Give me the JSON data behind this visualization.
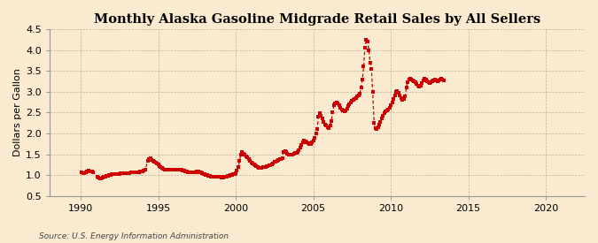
{
  "title": "Monthly Alaska Gasoline Midgrade Retail Sales by All Sellers",
  "ylabel": "Dollars per Gallon",
  "source": "Source: U.S. Energy Information Administration",
  "background_color": "#faebd0",
  "line_color": "#cc0000",
  "xlim": [
    1988.0,
    2022.5
  ],
  "ylim": [
    0.5,
    4.5
  ],
  "xticks": [
    1990,
    1995,
    2000,
    2005,
    2010,
    2015,
    2020
  ],
  "yticks": [
    0.5,
    1.0,
    1.5,
    2.0,
    2.5,
    3.0,
    3.5,
    4.0,
    4.5
  ],
  "data_points": [
    [
      1990.08,
      1.06
    ],
    [
      1990.17,
      1.05
    ],
    [
      1990.25,
      1.05
    ],
    [
      1990.33,
      1.06
    ],
    [
      1990.42,
      1.08
    ],
    [
      1990.5,
      1.1
    ],
    [
      1990.58,
      1.09
    ],
    [
      1990.67,
      1.09
    ],
    [
      1990.75,
      1.08
    ],
    [
      1990.83,
      1.06
    ],
    [
      1991.08,
      0.97
    ],
    [
      1991.17,
      0.94
    ],
    [
      1991.25,
      0.92
    ],
    [
      1991.33,
      0.91
    ],
    [
      1991.42,
      0.93
    ],
    [
      1991.5,
      0.95
    ],
    [
      1991.58,
      0.97
    ],
    [
      1991.67,
      0.98
    ],
    [
      1991.75,
      0.99
    ],
    [
      1991.83,
      1.0
    ],
    [
      1991.92,
      1.01
    ],
    [
      1992.0,
      1.02
    ],
    [
      1992.08,
      1.02
    ],
    [
      1992.17,
      1.02
    ],
    [
      1992.25,
      1.02
    ],
    [
      1992.33,
      1.03
    ],
    [
      1992.42,
      1.03
    ],
    [
      1992.5,
      1.03
    ],
    [
      1992.58,
      1.04
    ],
    [
      1992.67,
      1.04
    ],
    [
      1992.75,
      1.04
    ],
    [
      1992.83,
      1.05
    ],
    [
      1992.92,
      1.05
    ],
    [
      1993.0,
      1.05
    ],
    [
      1993.08,
      1.05
    ],
    [
      1993.17,
      1.05
    ],
    [
      1993.25,
      1.06
    ],
    [
      1993.33,
      1.06
    ],
    [
      1993.42,
      1.06
    ],
    [
      1993.5,
      1.06
    ],
    [
      1993.58,
      1.07
    ],
    [
      1993.67,
      1.07
    ],
    [
      1993.75,
      1.07
    ],
    [
      1993.83,
      1.08
    ],
    [
      1993.92,
      1.08
    ],
    [
      1994.0,
      1.08
    ],
    [
      1994.08,
      1.1
    ],
    [
      1994.17,
      1.12
    ],
    [
      1994.33,
      1.35
    ],
    [
      1994.42,
      1.38
    ],
    [
      1994.5,
      1.4
    ],
    [
      1994.58,
      1.37
    ],
    [
      1994.67,
      1.35
    ],
    [
      1994.75,
      1.33
    ],
    [
      1994.83,
      1.3
    ],
    [
      1994.92,
      1.28
    ],
    [
      1995.0,
      1.25
    ],
    [
      1995.08,
      1.22
    ],
    [
      1995.17,
      1.2
    ],
    [
      1995.25,
      1.18
    ],
    [
      1995.33,
      1.16
    ],
    [
      1995.42,
      1.14
    ],
    [
      1995.5,
      1.12
    ],
    [
      1995.58,
      1.12
    ],
    [
      1995.67,
      1.12
    ],
    [
      1995.75,
      1.12
    ],
    [
      1995.83,
      1.12
    ],
    [
      1995.92,
      1.12
    ],
    [
      1996.0,
      1.12
    ],
    [
      1996.08,
      1.13
    ],
    [
      1996.17,
      1.14
    ],
    [
      1996.25,
      1.14
    ],
    [
      1996.33,
      1.13
    ],
    [
      1996.42,
      1.13
    ],
    [
      1996.5,
      1.12
    ],
    [
      1996.58,
      1.11
    ],
    [
      1996.67,
      1.1
    ],
    [
      1996.75,
      1.09
    ],
    [
      1996.83,
      1.08
    ],
    [
      1996.92,
      1.07
    ],
    [
      1997.0,
      1.07
    ],
    [
      1997.08,
      1.07
    ],
    [
      1997.17,
      1.06
    ],
    [
      1997.25,
      1.06
    ],
    [
      1997.33,
      1.06
    ],
    [
      1997.42,
      1.07
    ],
    [
      1997.5,
      1.08
    ],
    [
      1997.58,
      1.08
    ],
    [
      1997.67,
      1.07
    ],
    [
      1997.75,
      1.06
    ],
    [
      1997.83,
      1.04
    ],
    [
      1997.92,
      1.03
    ],
    [
      1998.0,
      1.02
    ],
    [
      1998.08,
      1.01
    ],
    [
      1998.17,
      1.0
    ],
    [
      1998.25,
      0.99
    ],
    [
      1998.33,
      0.98
    ],
    [
      1998.42,
      0.97
    ],
    [
      1998.5,
      0.97
    ],
    [
      1998.58,
      0.97
    ],
    [
      1998.67,
      0.97
    ],
    [
      1998.75,
      0.97
    ],
    [
      1998.83,
      0.97
    ],
    [
      1998.92,
      0.96
    ],
    [
      1999.0,
      0.95
    ],
    [
      1999.08,
      0.94
    ],
    [
      1999.17,
      0.94
    ],
    [
      1999.25,
      0.95
    ],
    [
      1999.33,
      0.96
    ],
    [
      1999.42,
      0.97
    ],
    [
      1999.5,
      0.98
    ],
    [
      1999.58,
      0.99
    ],
    [
      1999.67,
      1.0
    ],
    [
      1999.75,
      1.01
    ],
    [
      1999.83,
      1.02
    ],
    [
      1999.92,
      1.03
    ],
    [
      2000.0,
      1.05
    ],
    [
      2000.08,
      1.1
    ],
    [
      2000.17,
      1.2
    ],
    [
      2000.25,
      1.35
    ],
    [
      2000.33,
      1.5
    ],
    [
      2000.42,
      1.55
    ],
    [
      2000.5,
      1.52
    ],
    [
      2000.58,
      1.48
    ],
    [
      2000.67,
      1.45
    ],
    [
      2000.75,
      1.42
    ],
    [
      2000.83,
      1.38
    ],
    [
      2000.92,
      1.35
    ],
    [
      2001.0,
      1.3
    ],
    [
      2001.08,
      1.28
    ],
    [
      2001.17,
      1.25
    ],
    [
      2001.25,
      1.23
    ],
    [
      2001.33,
      1.22
    ],
    [
      2001.42,
      1.2
    ],
    [
      2001.5,
      1.18
    ],
    [
      2001.58,
      1.17
    ],
    [
      2001.67,
      1.18
    ],
    [
      2001.75,
      1.19
    ],
    [
      2001.83,
      1.2
    ],
    [
      2001.92,
      1.2
    ],
    [
      2002.0,
      1.21
    ],
    [
      2002.08,
      1.22
    ],
    [
      2002.17,
      1.23
    ],
    [
      2002.25,
      1.24
    ],
    [
      2002.33,
      1.25
    ],
    [
      2002.42,
      1.28
    ],
    [
      2002.5,
      1.31
    ],
    [
      2002.58,
      1.33
    ],
    [
      2002.67,
      1.35
    ],
    [
      2002.75,
      1.37
    ],
    [
      2002.83,
      1.38
    ],
    [
      2002.92,
      1.38
    ],
    [
      2003.0,
      1.4
    ],
    [
      2003.08,
      1.55
    ],
    [
      2003.17,
      1.58
    ],
    [
      2003.25,
      1.55
    ],
    [
      2003.33,
      1.52
    ],
    [
      2003.42,
      1.5
    ],
    [
      2003.5,
      1.48
    ],
    [
      2003.58,
      1.48
    ],
    [
      2003.67,
      1.5
    ],
    [
      2003.75,
      1.52
    ],
    [
      2003.83,
      1.53
    ],
    [
      2003.92,
      1.54
    ],
    [
      2004.0,
      1.55
    ],
    [
      2004.08,
      1.6
    ],
    [
      2004.17,
      1.65
    ],
    [
      2004.25,
      1.72
    ],
    [
      2004.33,
      1.78
    ],
    [
      2004.42,
      1.82
    ],
    [
      2004.5,
      1.8
    ],
    [
      2004.58,
      1.78
    ],
    [
      2004.67,
      1.76
    ],
    [
      2004.75,
      1.74
    ],
    [
      2004.83,
      1.75
    ],
    [
      2004.92,
      1.78
    ],
    [
      2005.0,
      1.82
    ],
    [
      2005.08,
      1.9
    ],
    [
      2005.17,
      2.0
    ],
    [
      2005.25,
      2.1
    ],
    [
      2005.33,
      2.4
    ],
    [
      2005.42,
      2.48
    ],
    [
      2005.5,
      2.42
    ],
    [
      2005.58,
      2.35
    ],
    [
      2005.67,
      2.28
    ],
    [
      2005.75,
      2.22
    ],
    [
      2005.83,
      2.18
    ],
    [
      2005.92,
      2.15
    ],
    [
      2006.0,
      2.12
    ],
    [
      2006.08,
      2.18
    ],
    [
      2006.17,
      2.3
    ],
    [
      2006.25,
      2.5
    ],
    [
      2006.33,
      2.68
    ],
    [
      2006.42,
      2.72
    ],
    [
      2006.5,
      2.75
    ],
    [
      2006.58,
      2.72
    ],
    [
      2006.67,
      2.68
    ],
    [
      2006.75,
      2.62
    ],
    [
      2006.83,
      2.58
    ],
    [
      2006.92,
      2.55
    ],
    [
      2007.0,
      2.52
    ],
    [
      2007.08,
      2.55
    ],
    [
      2007.17,
      2.6
    ],
    [
      2007.25,
      2.65
    ],
    [
      2007.33,
      2.7
    ],
    [
      2007.42,
      2.75
    ],
    [
      2007.5,
      2.78
    ],
    [
      2007.58,
      2.8
    ],
    [
      2007.67,
      2.82
    ],
    [
      2007.75,
      2.85
    ],
    [
      2007.83,
      2.88
    ],
    [
      2007.92,
      2.92
    ],
    [
      2008.0,
      2.96
    ],
    [
      2008.08,
      3.1
    ],
    [
      2008.17,
      3.3
    ],
    [
      2008.25,
      3.6
    ],
    [
      2008.33,
      4.05
    ],
    [
      2008.42,
      4.25
    ],
    [
      2008.5,
      4.2
    ],
    [
      2008.58,
      4.0
    ],
    [
      2008.67,
      3.7
    ],
    [
      2008.75,
      3.55
    ],
    [
      2008.83,
      3.0
    ],
    [
      2008.92,
      2.25
    ],
    [
      2009.0,
      2.12
    ],
    [
      2009.08,
      2.1
    ],
    [
      2009.17,
      2.15
    ],
    [
      2009.25,
      2.2
    ],
    [
      2009.33,
      2.28
    ],
    [
      2009.42,
      2.35
    ],
    [
      2009.5,
      2.42
    ],
    [
      2009.58,
      2.48
    ],
    [
      2009.67,
      2.52
    ],
    [
      2009.75,
      2.55
    ],
    [
      2009.83,
      2.58
    ],
    [
      2009.92,
      2.62
    ],
    [
      2010.0,
      2.68
    ],
    [
      2010.08,
      2.75
    ],
    [
      2010.17,
      2.82
    ],
    [
      2010.25,
      2.9
    ],
    [
      2010.33,
      3.0
    ],
    [
      2010.42,
      3.02
    ],
    [
      2010.5,
      2.98
    ],
    [
      2010.58,
      2.9
    ],
    [
      2010.67,
      2.85
    ],
    [
      2010.75,
      2.8
    ],
    [
      2010.83,
      2.82
    ],
    [
      2010.92,
      2.88
    ],
    [
      2011.0,
      3.1
    ],
    [
      2011.08,
      3.22
    ],
    [
      2011.17,
      3.3
    ],
    [
      2011.25,
      3.32
    ],
    [
      2011.33,
      3.3
    ],
    [
      2011.42,
      3.28
    ],
    [
      2011.5,
      3.25
    ],
    [
      2011.58,
      3.22
    ],
    [
      2011.67,
      3.18
    ],
    [
      2011.75,
      3.15
    ],
    [
      2011.83,
      3.12
    ],
    [
      2011.92,
      3.15
    ],
    [
      2012.0,
      3.2
    ],
    [
      2012.08,
      3.28
    ],
    [
      2012.17,
      3.32
    ],
    [
      2012.25,
      3.3
    ],
    [
      2012.33,
      3.25
    ],
    [
      2012.42,
      3.22
    ],
    [
      2012.5,
      3.2
    ],
    [
      2012.58,
      3.22
    ],
    [
      2012.67,
      3.25
    ],
    [
      2012.75,
      3.28
    ],
    [
      2012.83,
      3.3
    ],
    [
      2012.92,
      3.28
    ],
    [
      2013.0,
      3.25
    ],
    [
      2013.08,
      3.28
    ],
    [
      2013.17,
      3.3
    ],
    [
      2013.25,
      3.32
    ],
    [
      2013.33,
      3.3
    ],
    [
      2013.42,
      3.28
    ]
  ]
}
